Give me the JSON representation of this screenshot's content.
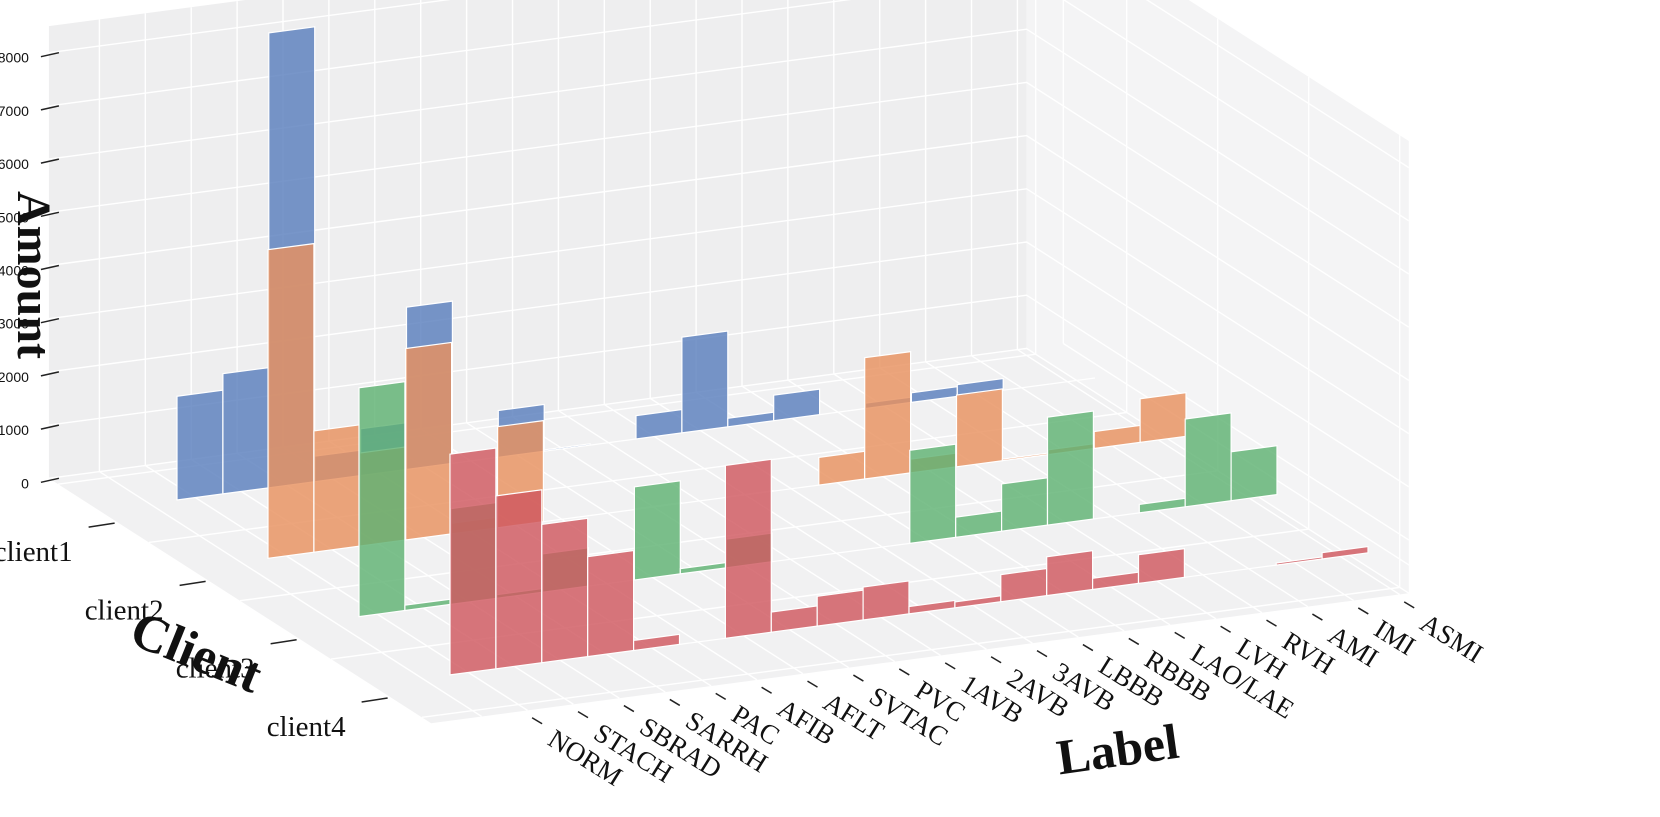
{
  "chart_data": {
    "type": "bar3d",
    "title": "",
    "xlabel": "Label",
    "ylabel": "Client",
    "zlabel": "Amount",
    "categories": [
      "NORM",
      "STACH",
      "SBRAD",
      "SARRH",
      "PAC",
      "AFIB",
      "AFLT",
      "SVTAC",
      "PVC",
      "1AVB",
      "2AVB",
      "3AVB",
      "LBBB",
      "RBBB",
      "LAO/LAE",
      "LVH",
      "RVH",
      "AMI",
      "IMI",
      "ASMI"
    ],
    "amount_ticks": [
      0,
      1000,
      2000,
      3000,
      4000,
      5000,
      6000,
      7000,
      8000
    ],
    "zlim": [
      0,
      8500
    ],
    "series": [
      {
        "name": "client1",
        "color": "#5a7fbd",
        "values": [
          1950,
          2260,
          8550,
          480,
          880,
          3050,
          1,
          880,
          25,
          0,
          440,
          1800,
          160,
          480,
          0,
          100,
          180,
          220,
          0,
          0
        ]
      },
      {
        "name": "client2",
        "color": "#e8915f",
        "values": [
          5800,
          2280,
          1750,
          3600,
          200,
          1900,
          0,
          0,
          15,
          0,
          10,
          0,
          520,
          2280,
          260,
          1350,
          30,
          90,
          320,
          820
        ]
      },
      {
        "name": "client3",
        "color": "#5fb273",
        "values": [
          4300,
          100,
          1800,
          70,
          720,
          0,
          1750,
          100,
          540,
          0,
          0,
          0,
          1750,
          380,
          890,
          2030,
          0,
          160,
          1650,
          920
        ]
      },
      {
        "name": "client4",
        "color": "#d0585f",
        "values": [
          4150,
          3250,
          2600,
          1880,
          190,
          0,
          3250,
          380,
          560,
          620,
          140,
          110,
          510,
          730,
          210,
          540,
          0,
          0,
          40,
          120
        ]
      }
    ]
  }
}
